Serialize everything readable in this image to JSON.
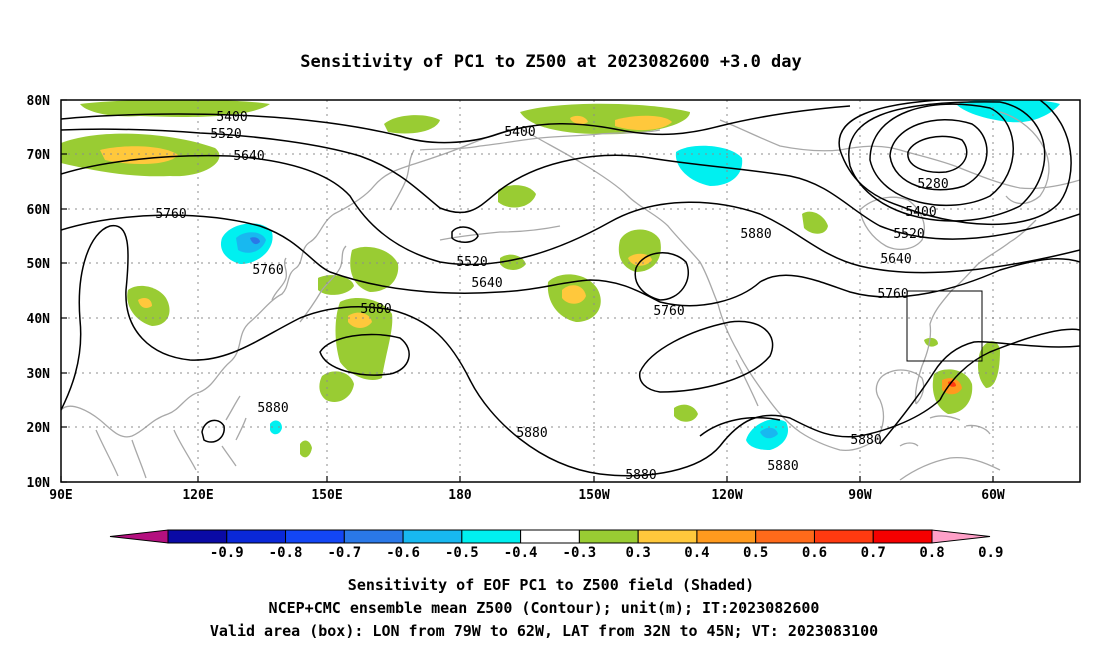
{
  "title": "Sensitivity of PC1 to Z500 at 2023082600 +3.0 day",
  "lat_labels": [
    "80N",
    "70N",
    "60N",
    "50N",
    "40N",
    "30N",
    "20N",
    "10N"
  ],
  "lon_labels": [
    "90E",
    "120E",
    "150E",
    "180",
    "150W",
    "120W",
    "90W",
    "60W"
  ],
  "contour_labels": [
    {
      "text": "5400",
      "ref": "a"
    },
    {
      "text": "5520",
      "ref": "b"
    },
    {
      "text": "5640",
      "ref": "c"
    },
    {
      "text": "5760",
      "ref": "d"
    },
    {
      "text": "5760",
      "ref": "e"
    },
    {
      "text": "5880",
      "ref": "f"
    },
    {
      "text": "5880",
      "ref": "g"
    },
    {
      "text": "5880",
      "ref": "h"
    },
    {
      "text": "5400",
      "ref": "i"
    },
    {
      "text": "5520",
      "ref": "j"
    },
    {
      "text": "5640",
      "ref": "k"
    },
    {
      "text": "5760",
      "ref": "l"
    },
    {
      "text": "5880",
      "ref": "m"
    },
    {
      "text": "5880",
      "ref": "n"
    },
    {
      "text": "5880",
      "ref": "o"
    },
    {
      "text": "5280",
      "ref": "p"
    },
    {
      "text": "5400",
      "ref": "q"
    },
    {
      "text": "5520",
      "ref": "r"
    },
    {
      "text": "5640",
      "ref": "s"
    },
    {
      "text": "5760",
      "ref": "t"
    },
    {
      "text": "5880",
      "ref": "u"
    }
  ],
  "colorbar": {
    "labels": [
      "-0.9",
      "-0.8",
      "-0.7",
      "-0.6",
      "-0.5",
      "-0.4",
      "-0.3",
      "0.3",
      "0.4",
      "0.5",
      "0.6",
      "0.7",
      "0.8",
      "0.9"
    ],
    "colors": [
      "#b4107f",
      "#0a0aa5",
      "#0a28d8",
      "#1346f5",
      "#2a78e8",
      "#18b8f0",
      "#00f0f0",
      "#ffffff",
      "#99cc33",
      "#ffc83c",
      "#ff9a1e",
      "#ff6a1a",
      "#ff3a10",
      "#f50000",
      "#ffa0c8"
    ]
  },
  "caption": {
    "line1": "Sensitivity of EOF PC1 to Z500 field (Shaded)",
    "line2": "NCEP+CMC ensemble mean Z500 (Contour); unit(m); IT:2023082600",
    "line3": "Valid area (box): LON from 79W to 62W, LAT from 32N to 45N; VT: 2023083100"
  },
  "valid_box": {
    "lon_min": -79,
    "lon_max": -62,
    "lat_min": 32,
    "lat_max": 45
  }
}
